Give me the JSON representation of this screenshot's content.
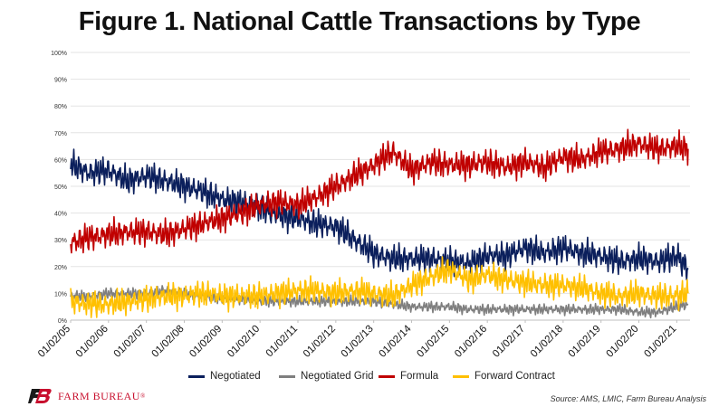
{
  "title": "Figure 1. National Cattle Transactions by Type",
  "source": "Source: AMS, LMIC, Farm Bureau Analysis",
  "logo_text": "FARM BUREAU",
  "logo_symbol": "®",
  "chart_data": {
    "type": "line",
    "ylim": [
      0,
      100
    ],
    "yticks": [
      0,
      10,
      20,
      30,
      40,
      50,
      60,
      70,
      80,
      90,
      100
    ],
    "ytick_labels": [
      "0%",
      "10%",
      "20%",
      "30%",
      "40%",
      "50%",
      "60%",
      "70%",
      "80%",
      "90%",
      "100%"
    ],
    "xlim": [
      2005.0,
      2021.35
    ],
    "xticks": [
      2005,
      2006,
      2007,
      2008,
      2009,
      2010,
      2011,
      2012,
      2013,
      2014,
      2015,
      2016,
      2017,
      2018,
      2019,
      2020,
      2021
    ],
    "xtick_labels": [
      "01/02/05",
      "01/02/06",
      "01/02/07",
      "01/02/08",
      "01/02/09",
      "01/02/10",
      "01/02/11",
      "01/02/12",
      "01/02/13",
      "01/02/14",
      "01/02/15",
      "01/02/16",
      "01/02/17",
      "01/02/18",
      "01/02/19",
      "01/02/20",
      "01/02/21"
    ],
    "grid": true,
    "legend_position": "bottom",
    "series": [
      {
        "name": "Negotiated",
        "color": "#0b1f5c",
        "x": [
          2005.0,
          2005.5,
          2006.0,
          2006.5,
          2007.0,
          2007.5,
          2008.0,
          2008.5,
          2009.0,
          2009.5,
          2010.0,
          2010.5,
          2011.0,
          2011.5,
          2012.0,
          2012.5,
          2013.0,
          2013.5,
          2014.0,
          2014.5,
          2015.0,
          2015.5,
          2016.0,
          2016.5,
          2017.0,
          2017.5,
          2018.0,
          2018.5,
          2019.0,
          2019.5,
          2020.0,
          2020.5,
          2021.0,
          2021.3
        ],
        "values": [
          58,
          55,
          56,
          52,
          54,
          52,
          50,
          48,
          45,
          44,
          42,
          39,
          38,
          36,
          35,
          30,
          25,
          23,
          23,
          23,
          22,
          21,
          24,
          24,
          27,
          25,
          27,
          25,
          24,
          22,
          23,
          22,
          24,
          19
        ]
      },
      {
        "name": "Negotiated Grid",
        "color": "#7f7f7f",
        "x": [
          2005.0,
          2005.5,
          2006.0,
          2006.5,
          2007.0,
          2007.5,
          2008.0,
          2008.5,
          2009.0,
          2009.5,
          2010.0,
          2010.5,
          2011.0,
          2011.5,
          2012.0,
          2012.5,
          2013.0,
          2013.5,
          2014.0,
          2014.5,
          2015.0,
          2015.5,
          2016.0,
          2016.5,
          2017.0,
          2017.5,
          2018.0,
          2018.5,
          2019.0,
          2019.5,
          2020.0,
          2020.5,
          2021.0,
          2021.3
        ],
        "values": [
          9,
          9,
          10,
          10,
          10,
          11,
          10,
          9,
          8,
          8,
          7,
          7,
          7,
          7,
          7,
          7,
          7,
          6,
          5,
          5,
          5,
          4,
          4,
          4,
          4,
          4,
          4,
          4,
          4,
          4,
          3,
          3,
          5,
          6
        ]
      },
      {
        "name": "Formula",
        "color": "#c00000",
        "x": [
          2005.0,
          2005.5,
          2006.0,
          2006.5,
          2007.0,
          2007.5,
          2008.0,
          2008.5,
          2009.0,
          2009.5,
          2010.0,
          2010.5,
          2011.0,
          2011.5,
          2012.0,
          2012.5,
          2013.0,
          2013.5,
          2014.0,
          2014.5,
          2015.0,
          2015.5,
          2016.0,
          2016.5,
          2017.0,
          2017.5,
          2018.0,
          2018.5,
          2019.0,
          2019.5,
          2020.0,
          2020.5,
          2021.0,
          2021.3
        ],
        "values": [
          29,
          31,
          32,
          33,
          33,
          32,
          34,
          36,
          38,
          40,
          43,
          44,
          43,
          46,
          50,
          54,
          58,
          63,
          56,
          59,
          58,
          58,
          59,
          57,
          59,
          57,
          61,
          60,
          63,
          64,
          66,
          64,
          65,
          64
        ]
      },
      {
        "name": "Forward Contract",
        "color": "#ffc000",
        "x": [
          2005.0,
          2005.5,
          2006.0,
          2006.5,
          2007.0,
          2007.5,
          2008.0,
          2008.5,
          2009.0,
          2009.5,
          2010.0,
          2010.5,
          2011.0,
          2011.5,
          2012.0,
          2012.5,
          2013.0,
          2013.5,
          2014.0,
          2014.5,
          2015.0,
          2015.5,
          2016.0,
          2016.5,
          2017.0,
          2017.5,
          2018.0,
          2018.5,
          2019.0,
          2019.5,
          2020.0,
          2020.5,
          2021.0,
          2021.3
        ],
        "values": [
          7,
          6,
          6,
          7,
          8,
          9,
          9,
          10,
          9,
          9,
          9,
          10,
          11,
          11,
          10,
          11,
          10,
          9,
          13,
          16,
          19,
          15,
          17,
          15,
          14,
          13,
          13,
          12,
          10,
          9,
          10,
          9,
          9,
          10
        ]
      }
    ]
  }
}
